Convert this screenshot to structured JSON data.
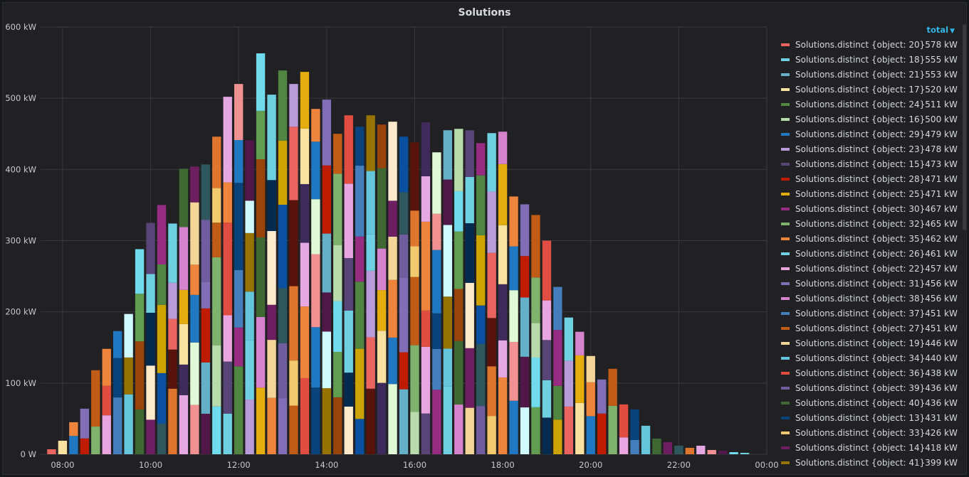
{
  "panel": {
    "title": "Solutions"
  },
  "legend": {
    "sort_label": "total",
    "sort_caret": "▼"
  },
  "chart_data": {
    "type": "bar",
    "stacked": true,
    "title": "Solutions",
    "xlabel": "",
    "ylabel": "",
    "unit": "kW",
    "ylim": [
      0,
      600
    ],
    "y_ticks": [
      "0 W",
      "100 kW",
      "200 kW",
      "300 kW",
      "400 kW",
      "500 kW",
      "600 kW"
    ],
    "x_ticks": [
      "08:00",
      "10:00",
      "12:00",
      "14:00",
      "16:00",
      "18:00",
      "20:00",
      "22:00",
      "00:00"
    ],
    "x_range_hours": [
      7.5,
      24.0
    ],
    "grid": true,
    "legend_position": "right",
    "bars": [
      {
        "t": 7.75,
        "v": 7
      },
      {
        "t": 8.0,
        "v": 19
      },
      {
        "t": 8.25,
        "v": 45
      },
      {
        "t": 8.5,
        "v": 64
      },
      {
        "t": 8.75,
        "v": 118
      },
      {
        "t": 9.0,
        "v": 148
      },
      {
        "t": 9.25,
        "v": 173
      },
      {
        "t": 9.5,
        "v": 197
      },
      {
        "t": 9.75,
        "v": 288
      },
      {
        "t": 10.0,
        "v": 325
      },
      {
        "t": 10.25,
        "v": 350
      },
      {
        "t": 10.5,
        "v": 324
      },
      {
        "t": 10.75,
        "v": 401
      },
      {
        "t": 11.0,
        "v": 404
      },
      {
        "t": 11.25,
        "v": 407
      },
      {
        "t": 11.5,
        "v": 446
      },
      {
        "t": 11.75,
        "v": 502
      },
      {
        "t": 12.0,
        "v": 520
      },
      {
        "t": 12.25,
        "v": 441
      },
      {
        "t": 12.5,
        "v": 563
      },
      {
        "t": 12.75,
        "v": 505
      },
      {
        "t": 13.0,
        "v": 539
      },
      {
        "t": 13.25,
        "v": 520
      },
      {
        "t": 13.5,
        "v": 537
      },
      {
        "t": 13.75,
        "v": 485
      },
      {
        "t": 14.0,
        "v": 498
      },
      {
        "t": 14.25,
        "v": 450
      },
      {
        "t": 14.5,
        "v": 476
      },
      {
        "t": 14.75,
        "v": 460
      },
      {
        "t": 15.0,
        "v": 476
      },
      {
        "t": 15.25,
        "v": 463
      },
      {
        "t": 15.5,
        "v": 467
      },
      {
        "t": 15.75,
        "v": 446
      },
      {
        "t": 16.0,
        "v": 438
      },
      {
        "t": 16.25,
        "v": 466
      },
      {
        "t": 16.5,
        "v": 424
      },
      {
        "t": 16.75,
        "v": 455
      },
      {
        "t": 17.0,
        "v": 457
      },
      {
        "t": 17.25,
        "v": 455
      },
      {
        "t": 17.5,
        "v": 437
      },
      {
        "t": 17.75,
        "v": 451
      },
      {
        "t": 18.0,
        "v": 453
      },
      {
        "t": 18.25,
        "v": 362
      },
      {
        "t": 18.5,
        "v": 351
      },
      {
        "t": 18.75,
        "v": 336
      },
      {
        "t": 19.0,
        "v": 300
      },
      {
        "t": 19.25,
        "v": 235
      },
      {
        "t": 19.5,
        "v": 192
      },
      {
        "t": 19.75,
        "v": 172
      },
      {
        "t": 20.0,
        "v": 138
      },
      {
        "t": 20.25,
        "v": 105
      },
      {
        "t": 20.5,
        "v": 120
      },
      {
        "t": 20.75,
        "v": 70
      },
      {
        "t": 21.0,
        "v": 63
      },
      {
        "t": 21.25,
        "v": 40
      },
      {
        "t": 21.5,
        "v": 22
      },
      {
        "t": 21.75,
        "v": 17
      },
      {
        "t": 22.0,
        "v": 12
      },
      {
        "t": 22.25,
        "v": 9
      },
      {
        "t": 22.5,
        "v": 12
      },
      {
        "t": 22.75,
        "v": 6
      },
      {
        "t": 23.0,
        "v": 5
      },
      {
        "t": 23.25,
        "v": 3
      },
      {
        "t": 23.5,
        "v": 2
      }
    ],
    "series": [
      {
        "name": "Solutions.distinct {object: 20}",
        "total": "578 kW",
        "color": "#ea6460"
      },
      {
        "name": "Solutions.distinct {object: 18}",
        "total": "555 kW",
        "color": "#6ed0e0"
      },
      {
        "name": "Solutions.distinct {object: 21}",
        "total": "553 kW",
        "color": "#64b0c8"
      },
      {
        "name": "Solutions.distinct {object: 17}",
        "total": "520 kW",
        "color": "#f9e2a0"
      },
      {
        "name": "Solutions.distinct {object: 24}",
        "total": "511 kW",
        "color": "#508642"
      },
      {
        "name": "Solutions.distinct {object: 16}",
        "total": "500 kW",
        "color": "#b7dbab"
      },
      {
        "name": "Solutions.distinct {object: 29}",
        "total": "479 kW",
        "color": "#1f78c1"
      },
      {
        "name": "Solutions.distinct {object: 23}",
        "total": "478 kW",
        "color": "#ba9bd9"
      },
      {
        "name": "Solutions.distinct {object: 15}",
        "total": "473 kW",
        "color": "#584477"
      },
      {
        "name": "Solutions.distinct {object: 28}",
        "total": "471 kW",
        "color": "#bf1b00"
      },
      {
        "name": "Solutions.distinct {object: 25}",
        "total": "471 kW",
        "color": "#e5ac0e"
      },
      {
        "name": "Solutions.distinct {object: 30}",
        "total": "467 kW",
        "color": "#962d82"
      },
      {
        "name": "Solutions.distinct {object: 32}",
        "total": "465 kW",
        "color": "#7eb26d"
      },
      {
        "name": "Solutions.distinct {object: 35}",
        "total": "462 kW",
        "color": "#ef843c"
      },
      {
        "name": "Solutions.distinct {object: 26}",
        "total": "461 kW",
        "color": "#6ed0e0"
      },
      {
        "name": "Solutions.distinct {object: 22}",
        "total": "457 kW",
        "color": "#e8a5e0"
      },
      {
        "name": "Solutions.distinct {object: 31}",
        "total": "456 kW",
        "color": "#806eb7"
      },
      {
        "name": "Solutions.distinct {object: 38}",
        "total": "456 kW",
        "color": "#d683ce"
      },
      {
        "name": "Solutions.distinct {object: 37}",
        "total": "451 kW",
        "color": "#447ebc"
      },
      {
        "name": "Solutions.distinct {object: 27}",
        "total": "451 kW",
        "color": "#c15c17"
      },
      {
        "name": "Solutions.distinct {object: 19}",
        "total": "446 kW",
        "color": "#f4d598"
      },
      {
        "name": "Solutions.distinct {object: 34}",
        "total": "440 kW",
        "color": "#65c5db"
      },
      {
        "name": "Solutions.distinct {object: 36}",
        "total": "438 kW",
        "color": "#e24d42"
      },
      {
        "name": "Solutions.distinct {object: 39}",
        "total": "436 kW",
        "color": "#705da0"
      },
      {
        "name": "Solutions.distinct {object: 40}",
        "total": "436 kW",
        "color": "#3f6833"
      },
      {
        "name": "Solutions.distinct {object: 13}",
        "total": "431 kW",
        "color": "#0a437c"
      },
      {
        "name": "Solutions.distinct {object: 33}",
        "total": "426 kW",
        "color": "#f2c96d"
      },
      {
        "name": "Solutions.distinct {object: 14}",
        "total": "418 kW",
        "color": "#6d1f62"
      },
      {
        "name": "Solutions.distinct {object: 41}",
        "total": "399 kW",
        "color": "#967302"
      }
    ],
    "extra_colors": [
      "#ef843c",
      "#2f575e",
      "#99440a",
      "#1f78c1",
      "#e0752d",
      "#fceaca",
      "#cffaff",
      "#e5a8e2",
      "#0a50a1",
      "#629e51",
      "#f29191",
      "#58140c",
      "#052b51",
      "#511749",
      "#3f2b5b",
      "#cca300",
      "#70dbed",
      "#e0f9d7"
    ]
  }
}
